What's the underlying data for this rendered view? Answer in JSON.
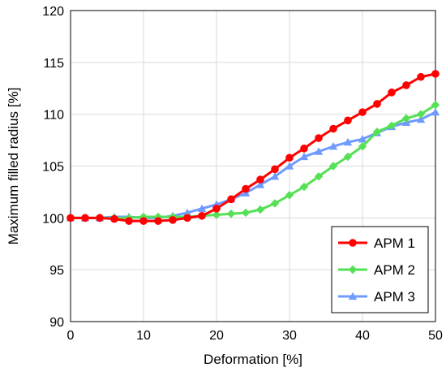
{
  "chart_data": {
    "type": "line",
    "xlabel": "Deformation [%]",
    "ylabel": "Maximum filled radius [%]",
    "xlim": [
      0,
      50
    ],
    "ylim": [
      90,
      120
    ],
    "xticks": [
      0,
      10,
      20,
      30,
      40,
      50
    ],
    "yticks": [
      90,
      95,
      100,
      105,
      110,
      115,
      120
    ],
    "grid": true,
    "legend_position": "bottom-right",
    "series": [
      {
        "name": "APM 1",
        "color": "#ff0000",
        "marker": "circle",
        "x": [
          0,
          2,
          4,
          6,
          8,
          10,
          12,
          14,
          16,
          18,
          20,
          22,
          24,
          26,
          28,
          30,
          32,
          34,
          36,
          38,
          40,
          42,
          44,
          46,
          48,
          50
        ],
        "values": [
          100.0,
          100.0,
          100.0,
          99.9,
          99.7,
          99.7,
          99.7,
          99.8,
          100.0,
          100.2,
          100.9,
          101.8,
          102.8,
          103.7,
          104.7,
          105.8,
          106.7,
          107.7,
          108.6,
          109.4,
          110.2,
          111.0,
          112.1,
          112.8,
          113.6,
          113.9
        ]
      },
      {
        "name": "APM 2",
        "color": "#55e055",
        "marker": "diamond",
        "x": [
          0,
          2,
          4,
          6,
          8,
          10,
          12,
          14,
          16,
          18,
          20,
          22,
          24,
          26,
          28,
          30,
          32,
          34,
          36,
          38,
          40,
          42,
          44,
          46,
          48,
          50
        ],
        "values": [
          100.0,
          100.0,
          100.0,
          100.0,
          100.0,
          100.1,
          100.1,
          100.1,
          100.1,
          100.2,
          100.3,
          100.4,
          100.5,
          100.8,
          101.4,
          102.2,
          103.0,
          104.0,
          105.0,
          105.9,
          106.9,
          108.3,
          108.9,
          109.6,
          110.0,
          110.9
        ]
      },
      {
        "name": "APM 3",
        "color": "#6f9bff",
        "marker": "triangle",
        "x": [
          0,
          2,
          4,
          6,
          8,
          10,
          12,
          14,
          16,
          18,
          20,
          22,
          24,
          26,
          28,
          30,
          32,
          34,
          36,
          38,
          40,
          42,
          44,
          46,
          48,
          50
        ],
        "values": [
          100.0,
          100.0,
          100.0,
          100.1,
          100.1,
          100.0,
          100.0,
          100.2,
          100.5,
          100.9,
          101.3,
          101.8,
          102.4,
          103.2,
          104.0,
          105.0,
          105.9,
          106.4,
          106.9,
          107.3,
          107.6,
          108.2,
          108.8,
          109.2,
          109.5,
          110.2
        ]
      }
    ]
  }
}
